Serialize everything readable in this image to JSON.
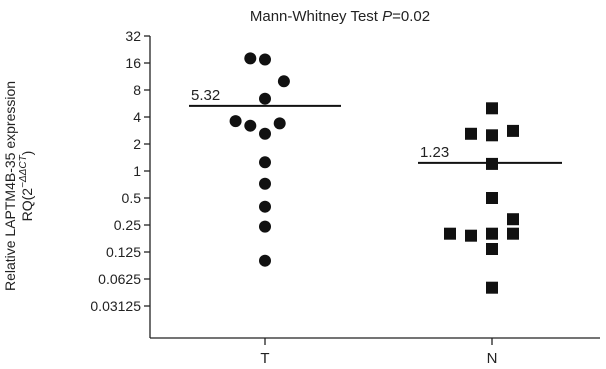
{
  "chart_data": {
    "type": "scatter",
    "title": "Mann-Whitney Test ",
    "title_p": "P",
    "title_value": "=0.02",
    "ylabel_line1": "Relative LAPTM4B-35 expression",
    "ylabel_line2_prefix": "RQ(2",
    "ylabel_superscript": "−ΔΔCT",
    "ylabel_line2_suffix": ")",
    "y_scale": "log2",
    "ylim": [
      0.03125,
      32
    ],
    "yticks": [
      32,
      16,
      8,
      4,
      2,
      1,
      0.5,
      0.25,
      0.125,
      0.0625,
      0.03125
    ],
    "ytick_labels": [
      "32",
      "16",
      "8",
      "4",
      "2",
      "1",
      "0.5",
      "0.25",
      "0.125",
      "0.0625",
      "0.03125"
    ],
    "categories": [
      "T",
      "N"
    ],
    "series": [
      {
        "category": "T",
        "marker": "circle",
        "median": 5.32,
        "median_label": "5.32",
        "points": [
          {
            "offset": -0.7,
            "y": 18.0
          },
          {
            "offset": 0.0,
            "y": 17.5
          },
          {
            "offset": 0.9,
            "y": 10.0
          },
          {
            "offset": 0.0,
            "y": 6.4
          },
          {
            "offset": -1.4,
            "y": 3.6
          },
          {
            "offset": -0.7,
            "y": 3.2
          },
          {
            "offset": 0.7,
            "y": 3.4
          },
          {
            "offset": 0.0,
            "y": 2.6
          },
          {
            "offset": 0.0,
            "y": 1.25
          },
          {
            "offset": 0.0,
            "y": 0.72
          },
          {
            "offset": 0.0,
            "y": 0.4
          },
          {
            "offset": 0.0,
            "y": 0.24
          },
          {
            "offset": 0.0,
            "y": 0.1
          }
        ]
      },
      {
        "category": "N",
        "marker": "square",
        "median": 1.23,
        "median_label": "1.23",
        "points": [
          {
            "offset": 0.0,
            "y": 5.0
          },
          {
            "offset": -1.0,
            "y": 2.6
          },
          {
            "offset": 0.0,
            "y": 2.5
          },
          {
            "offset": 1.0,
            "y": 2.8
          },
          {
            "offset": 0.0,
            "y": 1.2
          },
          {
            "offset": 0.0,
            "y": 0.5
          },
          {
            "offset": 1.0,
            "y": 0.29
          },
          {
            "offset": -2.0,
            "y": 0.2
          },
          {
            "offset": -1.0,
            "y": 0.19
          },
          {
            "offset": 0.0,
            "y": 0.2
          },
          {
            "offset": 1.0,
            "y": 0.2
          },
          {
            "offset": 0.0,
            "y": 0.135
          },
          {
            "offset": 0.0,
            "y": 0.05
          }
        ]
      }
    ],
    "grid": false,
    "legend": "none"
  }
}
